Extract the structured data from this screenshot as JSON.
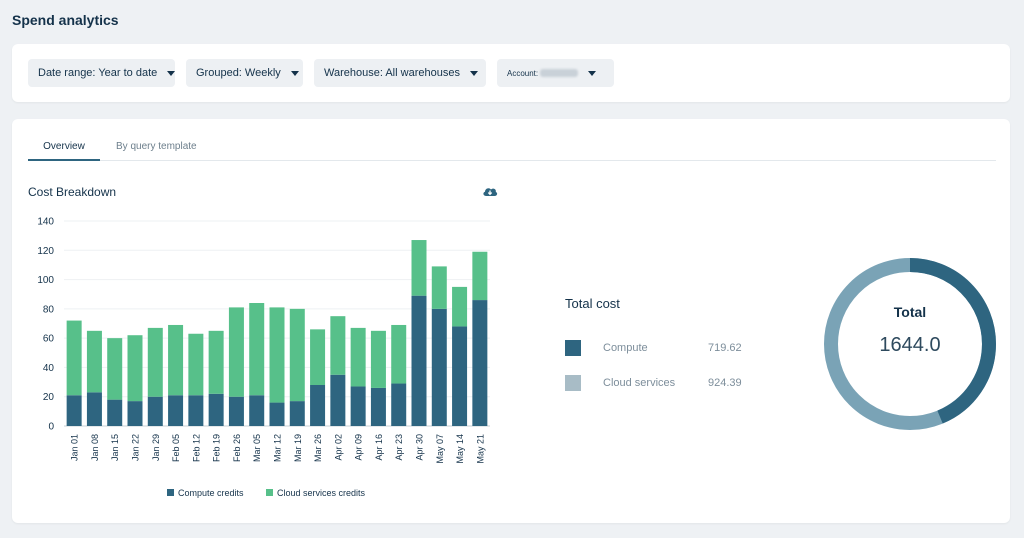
{
  "page": {
    "title": "Spend analytics"
  },
  "filters": {
    "date_range": "Date range: Year to date",
    "grouped": "Grouped: Weekly",
    "warehouse": "Warehouse:  All warehouses",
    "account_label": "Account:"
  },
  "tabs": [
    {
      "label": "Overview",
      "active": true
    },
    {
      "label": "By query template",
      "active": false
    }
  ],
  "section": {
    "title": "Cost Breakdown",
    "download_icon": "cloud-download-icon"
  },
  "colors": {
    "compute": "#2e6580",
    "cloud_services": "#57c08a",
    "donut_compute": "#2e6580",
    "donut_cloud": "#7aa3b6"
  },
  "chart_data": {
    "type": "bar",
    "stacked": true,
    "categories": [
      "Jan 01",
      "Jan 08",
      "Jan 15",
      "Jan 22",
      "Jan 29",
      "Feb 05",
      "Feb 12",
      "Feb 19",
      "Feb 26",
      "Mar 05",
      "Mar 12",
      "Mar 19",
      "Mar 26",
      "Apr 02",
      "Apr 09",
      "Apr 16",
      "Apr 23",
      "Apr 30",
      "May 07",
      "May 14",
      "May 21"
    ],
    "series": [
      {
        "name": "Compute credits",
        "values": [
          21,
          23,
          18,
          17,
          20,
          21,
          21,
          22,
          20,
          21,
          16,
          17,
          28,
          35,
          27,
          26,
          29,
          89,
          80,
          68,
          86
        ]
      },
      {
        "name": "Cloud services credits",
        "values": [
          51,
          42,
          42,
          45,
          47,
          48,
          42,
          43,
          61,
          63,
          65,
          63,
          38,
          40,
          40,
          39,
          40,
          38,
          29,
          27,
          33
        ]
      }
    ],
    "ylim": [
      0,
      140
    ],
    "yticks": [
      0,
      20,
      40,
      60,
      80,
      100,
      120,
      140
    ],
    "grid": true,
    "legend": "bottom"
  },
  "total": {
    "title": "Total cost",
    "items": [
      {
        "label": "Compute",
        "value": "719.62"
      },
      {
        "label": "Cloud services",
        "value": "924.39"
      }
    ],
    "donut_label": "Total",
    "donut_value": "1644.0",
    "donut_fraction_compute": 0.4377
  }
}
